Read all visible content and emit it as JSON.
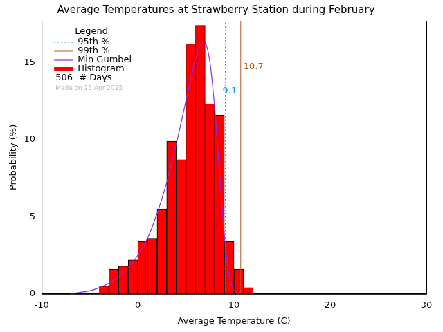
{
  "chart_data": {
    "type": "histogram",
    "title": "Average Temperatures at Strawberry Station during February",
    "x_label": "Average Temperature (C)",
    "y_label": "Probability (%)",
    "name": "Histogram",
    "bins": [
      -4,
      -3,
      -2,
      -1,
      0,
      1,
      2,
      3,
      4,
      5,
      6,
      7,
      8,
      9,
      10,
      11,
      12
    ],
    "values": [
      0.5,
      1.6,
      1.8,
      2.2,
      3.4,
      3.6,
      5.5,
      9.9,
      8.7,
      16.2,
      17.4,
      12.3,
      11.6,
      3.4,
      1.6,
      0.4
    ],
    "color": "#ff0000",
    "series": [
      {
        "name": "Min Gumbel",
        "type": "line",
        "color": "#8a2be2",
        "x": [
          -7,
          -6,
          -5,
          -4,
          -3,
          -2,
          -1,
          0,
          1,
          2,
          3,
          4,
          5,
          6,
          6.5,
          7,
          7.5,
          8,
          8.5,
          9,
          9.5,
          10,
          10.5
        ],
        "values": [
          0,
          0.1,
          0.2,
          0.4,
          0.7,
          1.1,
          1.7,
          2.5,
          3.6,
          5.2,
          7.2,
          9.7,
          12.5,
          15.2,
          16.1,
          16.3,
          15.0,
          12.0,
          7.8,
          3.8,
          1.2,
          0.2,
          0
        ]
      }
    ],
    "lines": [
      {
        "name": "95th %",
        "value": 9.1,
        "color": "#1a9cc4",
        "line_style": "dotted"
      },
      {
        "name": "99th %",
        "value": 10.7,
        "color": "#b8561e",
        "line_style": "solid"
      }
    ],
    "days": {
      "value": 506,
      "label": "# Days"
    },
    "legend_title": "Legend",
    "legend": "upper left",
    "note": "Made on 25 Apr 2025",
    "xlim": [
      -10,
      30
    ],
    "xticks": [
      -10,
      0,
      10,
      20,
      30
    ],
    "ylim": [
      0,
      17.7
    ],
    "yticks": [
      0,
      5,
      10,
      15
    ],
    "grid": false
  }
}
